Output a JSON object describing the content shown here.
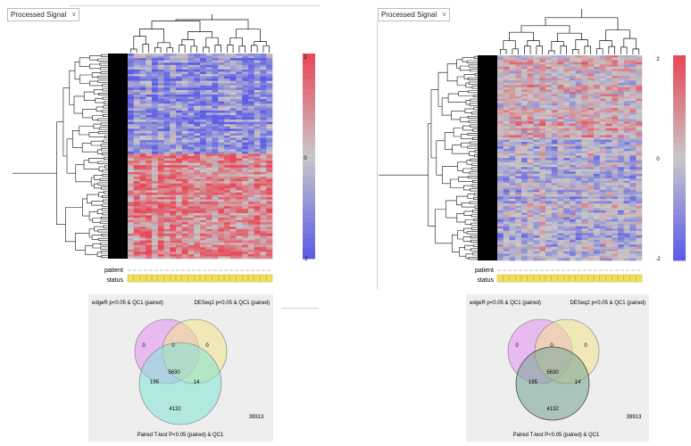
{
  "left_panel": {
    "dropdown": "Processed Signal",
    "scale": {
      "max": "2",
      "mid": "0",
      "min": "-2"
    },
    "annotations": {
      "patient": "patient",
      "status": "status"
    },
    "scheme": "blue-low red-high"
  },
  "right_panel": {
    "dropdown": "Processed Signal",
    "scale": {
      "max": "2",
      "mid": "0",
      "min": "-2"
    },
    "annotations": {
      "patient": "patient",
      "status": "status"
    },
    "scheme": "mixed"
  },
  "venn_left": {
    "label_a": "edgeR p<0.05 & QC1 (paired)",
    "label_b": "DESeq2 p<0.05 & QC1 (paired)",
    "label_c": "Paired T-test P<0.05 (paired) & QC1",
    "only_a": "0",
    "ab": "0",
    "only_b": "0",
    "abc": "5630",
    "ac": "195",
    "bc": "14",
    "only_c": "4132",
    "outside": "39913",
    "colors": {
      "a": "#e58ff0",
      "b": "#f3e38a",
      "c": "#7fe3d6"
    }
  },
  "venn_right": {
    "label_a": "edgeR p<0.05 & QC1 (paired)",
    "label_b": "DESeq2 p<0.05 & QC1 (paired)",
    "label_c": "Paired T-test P<0.05 (paired) & QC1",
    "only_a": "0",
    "ab": "0",
    "only_b": "0",
    "abc": "5630",
    "ac": "195",
    "bc": "14",
    "only_c": "4132",
    "outside": "39913",
    "colors": {
      "a": "#e58ff0",
      "b": "#f3e38a",
      "c": "#7fa89a"
    }
  }
}
